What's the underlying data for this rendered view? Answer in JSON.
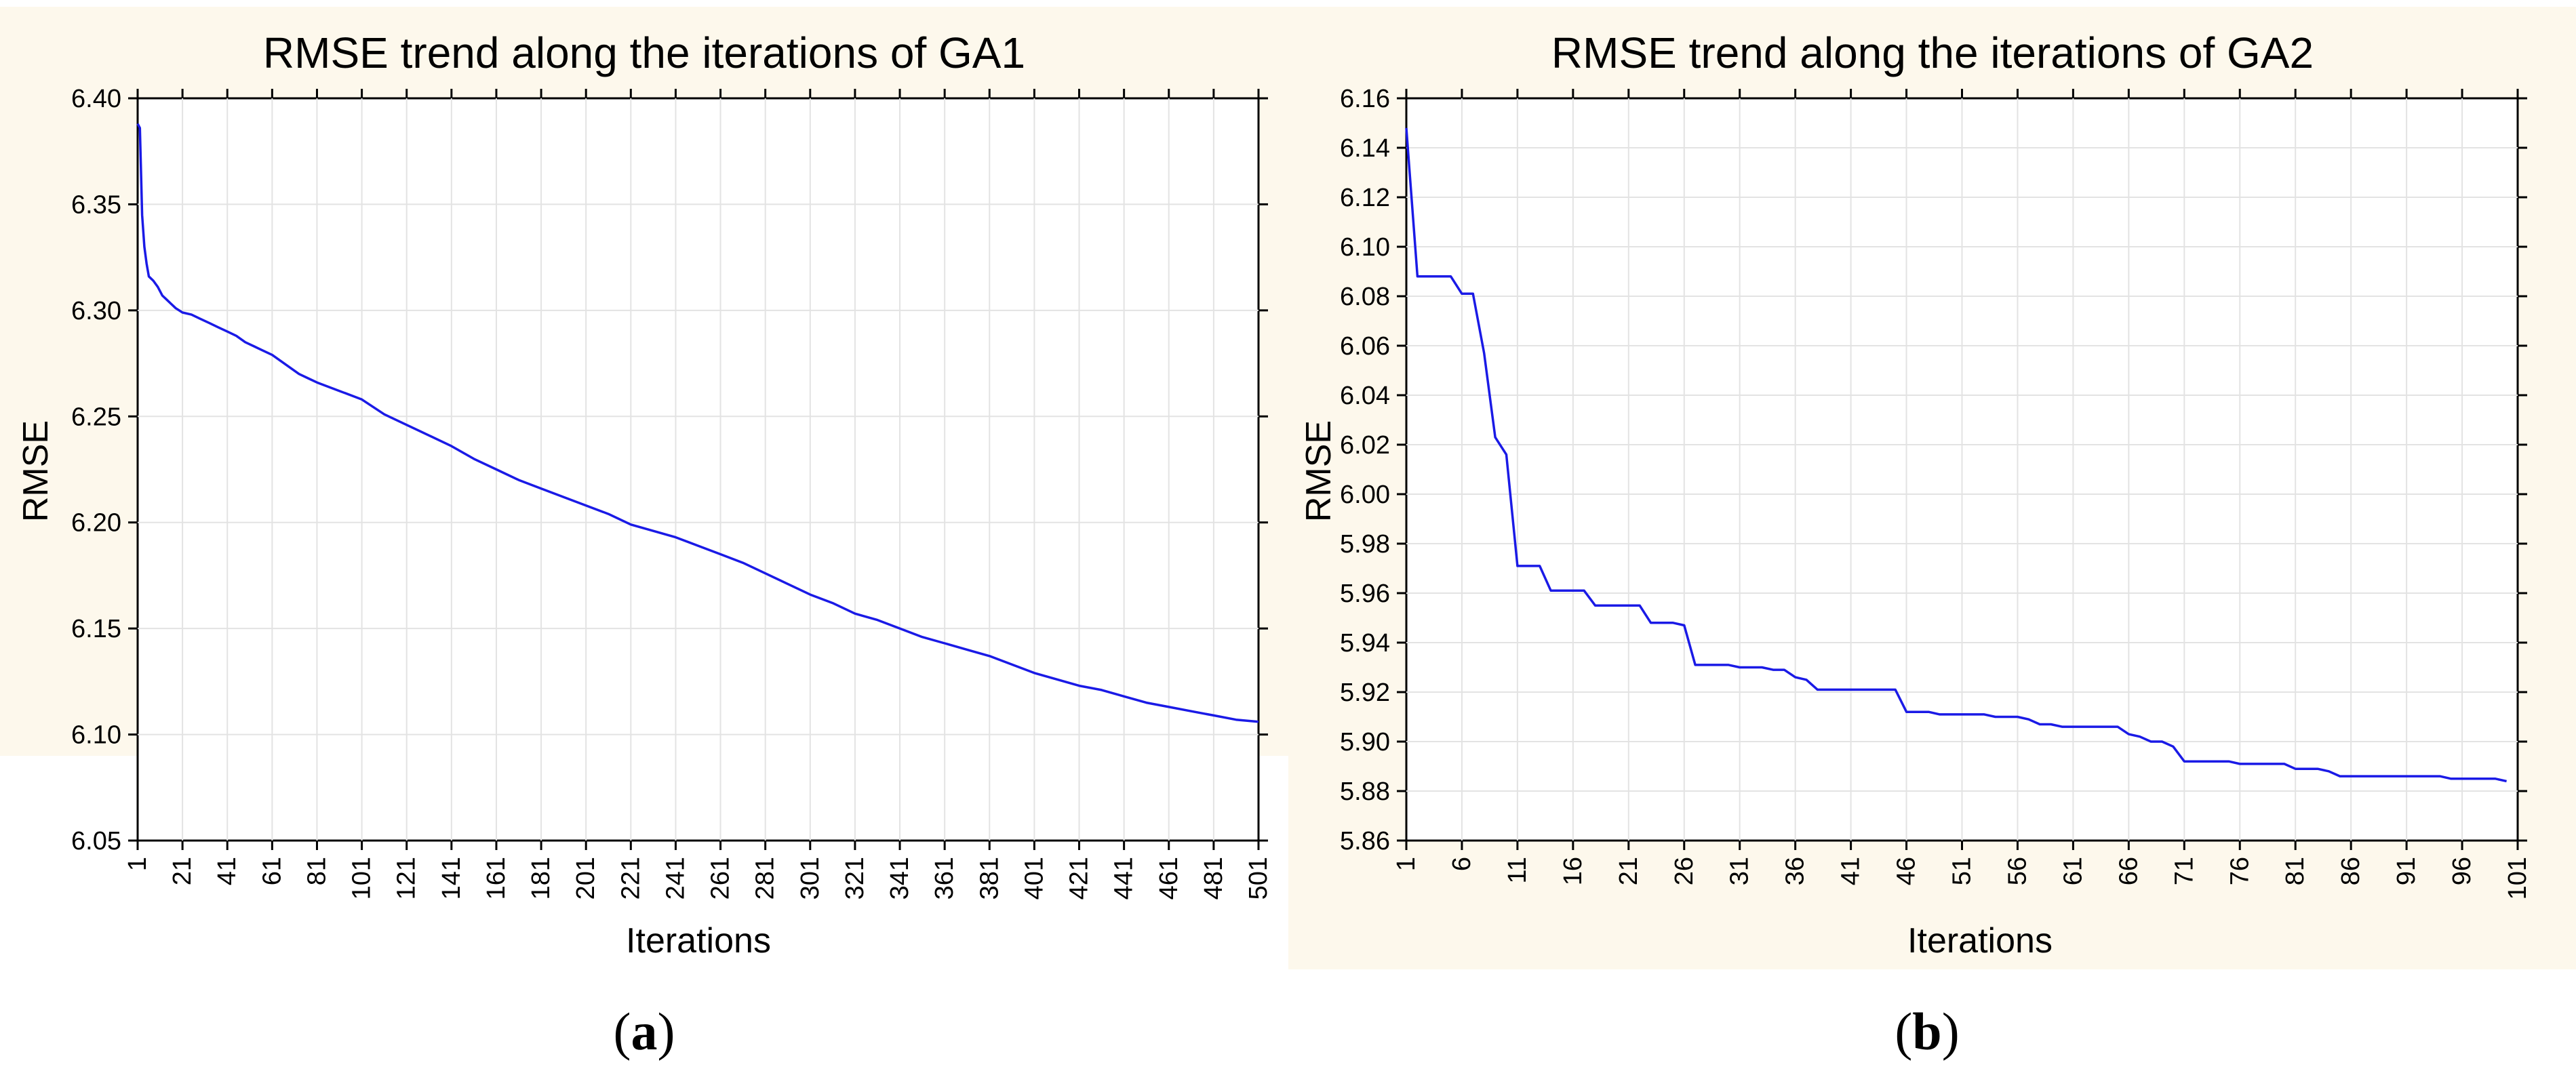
{
  "chart_data": [
    {
      "type": "line",
      "title": "RMSE trend along the iterations of GA1",
      "xlabel": "Iterations",
      "ylabel": "RMSE",
      "caption_letter": "a",
      "xlim": [
        1,
        501
      ],
      "ylim": [
        6.05,
        6.4
      ],
      "yticks": [
        6.05,
        6.1,
        6.15,
        6.2,
        6.25,
        6.3,
        6.35,
        6.4
      ],
      "ytick_labels": [
        "6.05",
        "6.10",
        "6.15",
        "6.20",
        "6.25",
        "6.30",
        "6.35",
        "6.40"
      ],
      "xticks": [
        1,
        21,
        41,
        61,
        81,
        101,
        121,
        141,
        161,
        181,
        201,
        221,
        241,
        261,
        281,
        301,
        321,
        341,
        361,
        381,
        401,
        421,
        441,
        461,
        481,
        501
      ],
      "xtick_labels": [
        "1",
        "21",
        "41",
        "61",
        "81",
        "101",
        "121",
        "141",
        "161",
        "181",
        "201",
        "221",
        "241",
        "261",
        "281",
        "301",
        "321",
        "341",
        "361",
        "381",
        "401",
        "421",
        "441",
        "461",
        "481",
        "501"
      ],
      "grid": true,
      "series": [
        {
          "name": "RMSE",
          "color": "#1a1ae6",
          "x": [
            1,
            2,
            3,
            4,
            5,
            6,
            8,
            10,
            12,
            14,
            16,
            18,
            21,
            25,
            29,
            33,
            37,
            41,
            45,
            49,
            53,
            57,
            61,
            65,
            69,
            73,
            77,
            81,
            91,
            101,
            111,
            121,
            131,
            141,
            151,
            161,
            171,
            181,
            191,
            201,
            211,
            221,
            231,
            241,
            251,
            261,
            271,
            281,
            291,
            301,
            311,
            321,
            331,
            341,
            351,
            361,
            371,
            381,
            391,
            401,
            411,
            421,
            431,
            441,
            451,
            461,
            471,
            481,
            491,
            501
          ],
          "y": [
            6.388,
            6.386,
            6.345,
            6.33,
            6.322,
            6.316,
            6.314,
            6.311,
            6.307,
            6.305,
            6.303,
            6.301,
            6.299,
            6.298,
            6.296,
            6.294,
            6.292,
            6.29,
            6.288,
            6.285,
            6.283,
            6.281,
            6.279,
            6.276,
            6.273,
            6.27,
            6.268,
            6.266,
            6.262,
            6.258,
            6.251,
            6.246,
            6.241,
            6.236,
            6.23,
            6.225,
            6.22,
            6.216,
            6.212,
            6.208,
            6.204,
            6.199,
            6.196,
            6.193,
            6.189,
            6.185,
            6.181,
            6.176,
            6.171,
            6.166,
            6.162,
            6.157,
            6.154,
            6.15,
            6.146,
            6.143,
            6.14,
            6.137,
            6.133,
            6.129,
            6.126,
            6.123,
            6.121,
            6.118,
            6.115,
            6.113,
            6.111,
            6.109,
            6.107,
            6.106
          ]
        }
      ]
    },
    {
      "type": "line",
      "title": "RMSE trend along the iterations of GA2",
      "xlabel": "Iterations",
      "ylabel": "RMSE",
      "caption_letter": "b",
      "xlim": [
        1,
        101
      ],
      "ylim": [
        5.86,
        6.16
      ],
      "yticks": [
        5.86,
        5.88,
        5.9,
        5.92,
        5.94,
        5.96,
        5.98,
        6.0,
        6.02,
        6.04,
        6.06,
        6.08,
        6.1,
        6.12,
        6.14,
        6.16
      ],
      "ytick_labels": [
        "5.86",
        "5.88",
        "5.90",
        "5.92",
        "5.94",
        "5.96",
        "5.98",
        "6.00",
        "6.02",
        "6.04",
        "6.06",
        "6.08",
        "6.10",
        "6.12",
        "6.14",
        "6.16"
      ],
      "xticks": [
        1,
        6,
        11,
        16,
        21,
        26,
        31,
        36,
        41,
        46,
        51,
        56,
        61,
        66,
        71,
        76,
        81,
        86,
        91,
        96,
        101
      ],
      "xtick_labels": [
        "1",
        "6",
        "11",
        "16",
        "21",
        "26",
        "31",
        "36",
        "41",
        "46",
        "51",
        "56",
        "61",
        "66",
        "71",
        "76",
        "81",
        "86",
        "91",
        "96",
        "101"
      ],
      "grid": true,
      "series": [
        {
          "name": "RMSE",
          "color": "#1a1ae6",
          "x": [
            1,
            2,
            3,
            4,
            5,
            6,
            7,
            8,
            9,
            10,
            11,
            12,
            13,
            14,
            15,
            16,
            17,
            18,
            19,
            20,
            21,
            22,
            23,
            24,
            25,
            26,
            27,
            28,
            29,
            30,
            31,
            32,
            33,
            34,
            35,
            36,
            37,
            38,
            39,
            40,
            41,
            42,
            43,
            44,
            45,
            46,
            47,
            48,
            49,
            50,
            51,
            52,
            53,
            54,
            55,
            56,
            57,
            58,
            59,
            60,
            61,
            62,
            63,
            64,
            65,
            66,
            67,
            68,
            69,
            70,
            71,
            72,
            73,
            74,
            75,
            76,
            77,
            78,
            79,
            80,
            81,
            82,
            83,
            84,
            85,
            86,
            87,
            88,
            89,
            90,
            91,
            92,
            93,
            94,
            95,
            96,
            97,
            98,
            99,
            100
          ],
          "y": [
            6.148,
            6.088,
            6.088,
            6.088,
            6.088,
            6.081,
            6.081,
            6.057,
            6.023,
            6.016,
            5.971,
            5.971,
            5.971,
            5.961,
            5.961,
            5.961,
            5.961,
            5.955,
            5.955,
            5.955,
            5.955,
            5.955,
            5.948,
            5.948,
            5.948,
            5.947,
            5.931,
            5.931,
            5.931,
            5.931,
            5.93,
            5.93,
            5.93,
            5.929,
            5.929,
            5.926,
            5.925,
            5.921,
            5.921,
            5.921,
            5.921,
            5.921,
            5.921,
            5.921,
            5.921,
            5.912,
            5.912,
            5.912,
            5.911,
            5.911,
            5.911,
            5.911,
            5.911,
            5.91,
            5.91,
            5.91,
            5.909,
            5.907,
            5.907,
            5.906,
            5.906,
            5.906,
            5.906,
            5.906,
            5.906,
            5.903,
            5.902,
            5.9,
            5.9,
            5.898,
            5.892,
            5.892,
            5.892,
            5.892,
            5.892,
            5.891,
            5.891,
            5.891,
            5.891,
            5.891,
            5.889,
            5.889,
            5.889,
            5.888,
            5.886,
            5.886,
            5.886,
            5.886,
            5.886,
            5.886,
            5.886,
            5.886,
            5.886,
            5.886,
            5.885,
            5.885,
            5.885,
            5.885,
            5.885,
            5.884
          ]
        }
      ]
    }
  ],
  "colors": {
    "panel_background": "#fdf8ec",
    "plot_background": "#ffffff",
    "grid": "#e3e3e3",
    "line": "#1a1ae6"
  }
}
